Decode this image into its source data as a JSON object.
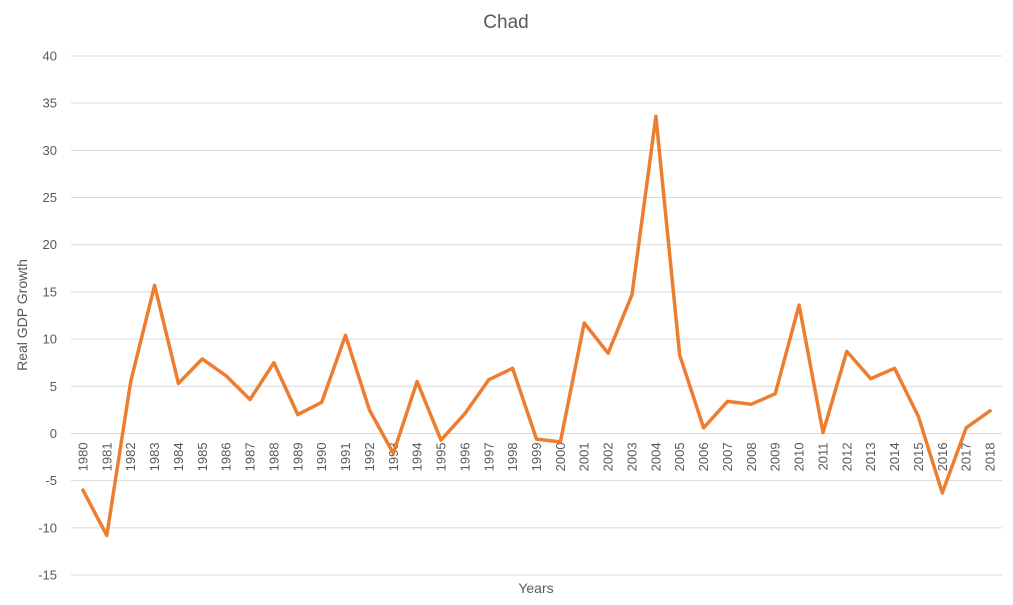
{
  "chart_data": {
    "type": "line",
    "title": "Chad",
    "xlabel": "Years",
    "ylabel": "Real GDP Growth",
    "ylim": [
      -15,
      40
    ],
    "yticks": [
      -15,
      -10,
      -5,
      0,
      5,
      10,
      15,
      20,
      25,
      30,
      35,
      40
    ],
    "grid": true,
    "legend": "none",
    "categories": [
      "1980",
      "1981",
      "1982",
      "1983",
      "1984",
      "1985",
      "1986",
      "1987",
      "1988",
      "1989",
      "1990",
      "1991",
      "1992",
      "1993",
      "1994",
      "1995",
      "1996",
      "1997",
      "1998",
      "1999",
      "2000",
      "2001",
      "2002",
      "2003",
      "2004",
      "2005",
      "2006",
      "2007",
      "2008",
      "2009",
      "2010",
      "2011",
      "2012",
      "2013",
      "2014",
      "2015",
      "2016",
      "2017",
      "2018"
    ],
    "series": [
      {
        "color": "#ed7d31",
        "values": [
          -6.0,
          -10.8,
          5.5,
          15.7,
          5.3,
          7.9,
          6.1,
          3.6,
          7.5,
          2.0,
          3.3,
          10.4,
          2.5,
          -2.1,
          5.5,
          -0.7,
          2.1,
          5.7,
          6.9,
          -0.6,
          -0.9,
          11.7,
          8.5,
          14.7,
          33.6,
          8.3,
          0.6,
          3.4,
          3.1,
          4.2,
          13.6,
          0.1,
          8.7,
          5.8,
          6.9,
          1.8,
          -6.3,
          0.6,
          2.4
        ]
      }
    ]
  }
}
